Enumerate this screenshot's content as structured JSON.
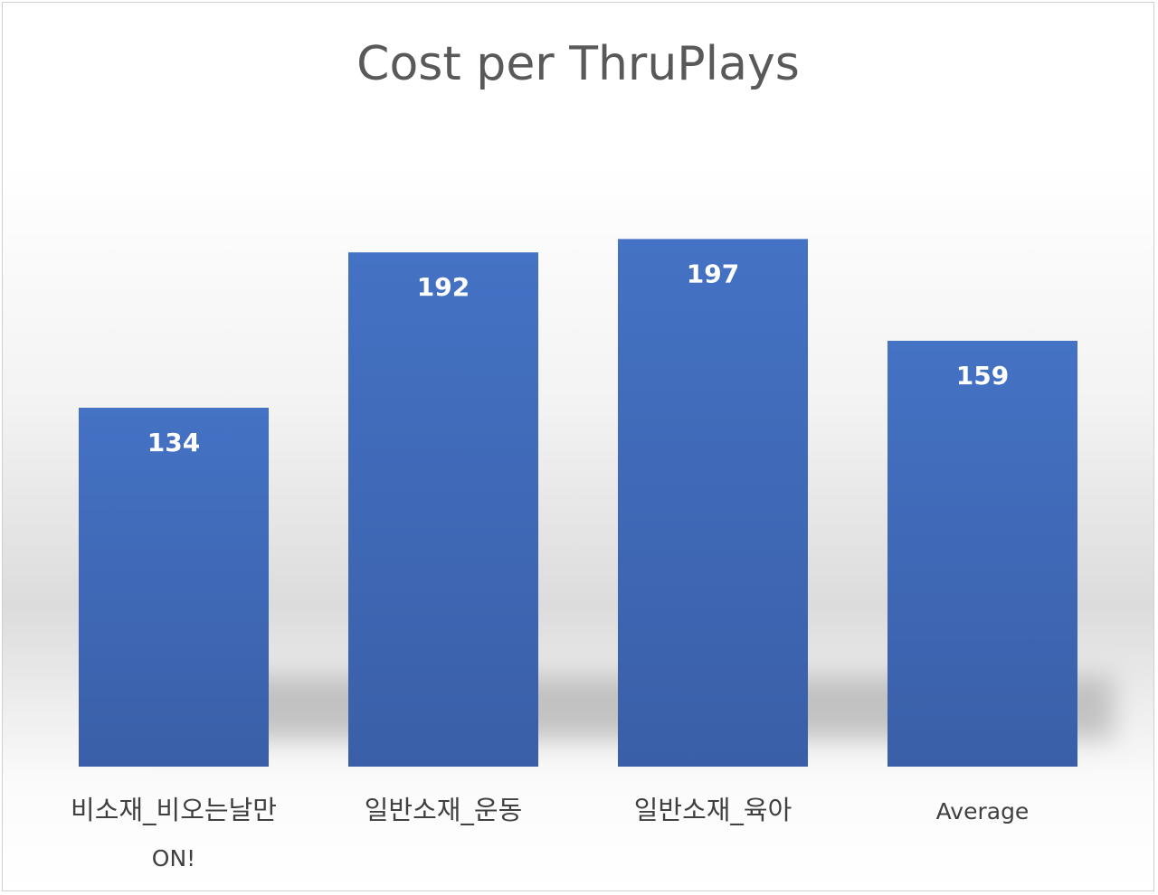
{
  "chart_data": {
    "type": "bar",
    "title": "Cost per ThruPlays",
    "categories": [
      [
        "비소재_비오는날만",
        "ON!"
      ],
      [
        "일반소재_운동"
      ],
      [
        "일반소재_육아"
      ],
      [
        "Average"
      ]
    ],
    "values": [
      134,
      192,
      197,
      159
    ],
    "data_labels": [
      "134",
      "192",
      "197",
      "159"
    ],
    "ylim": [
      0,
      200
    ],
    "grid": false,
    "legend": "none",
    "colors": {
      "bar_top": "#4472C4",
      "bar_bottom": "#3A5FA8",
      "data_label": "#FFFFFF",
      "axis_text": "#404040",
      "title": "#595959"
    }
  }
}
